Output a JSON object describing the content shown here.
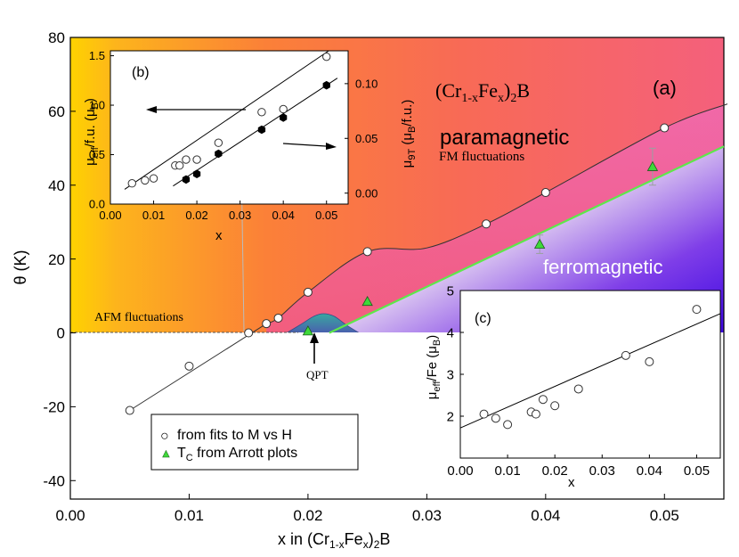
{
  "chart_data": [
    {
      "panel": "(a)",
      "type": "scatter",
      "title": "(Cr1-xFex)2B",
      "title_parts": {
        "base": "(Cr",
        "sub1": "1-x",
        "mid": "Fe",
        "sub2": "x",
        "end": ")",
        "sub3": "2",
        "tail": "B"
      },
      "xlabel": "x in (Cr1-xFex)2B",
      "xlabel_parts": {
        "base": "x in (Cr",
        "sub1": "1-x",
        "mid": "Fe",
        "sub2": "x",
        "end": ")",
        "sub3": "2",
        "tail": "B"
      },
      "ylabel": "θ (K)",
      "xlim": [
        0.0,
        0.055
      ],
      "ylim": [
        -45,
        80
      ],
      "xticks": [
        "0.00",
        "0.01",
        "0.02",
        "0.03",
        "0.04",
        "0.05"
      ],
      "xtick_values": [
        0.0,
        0.01,
        0.02,
        0.03,
        0.04,
        0.05
      ],
      "yticks": [
        "-40",
        "-20",
        "0",
        "20",
        "40",
        "60",
        "80"
      ],
      "ytick_values": [
        -40,
        -20,
        0,
        20,
        40,
        60,
        80
      ],
      "series": [
        {
          "name": "from fits to M vs H",
          "marker": "open-circle",
          "x": [
            0.005,
            0.01,
            0.015,
            0.0165,
            0.0175,
            0.02,
            0.025,
            0.035,
            0.04,
            0.05
          ],
          "y": [
            -21,
            -9,
            0,
            2.5,
            4,
            11,
            22,
            29.5,
            38,
            55.5
          ]
        },
        {
          "name": "TC from Arrott plots",
          "marker": "green-triangle",
          "x": [
            0.02,
            0.025,
            0.0395,
            0.049
          ],
          "y": [
            0.5,
            8.5,
            24,
            45
          ],
          "err": [
            0,
            0,
            2.5,
            5
          ]
        }
      ],
      "fit_line_low": {
        "x": [
          0.005,
          0.0165
        ],
        "y": [
          -21,
          2.5
        ]
      },
      "fit_curve_high": {
        "x": [
          0.0165,
          0.0175,
          0.02,
          0.025,
          0.03,
          0.035,
          0.04,
          0.05,
          0.0553
        ],
        "y": [
          2.5,
          4,
          11,
          22,
          23,
          29.5,
          38,
          55.5,
          62
        ]
      },
      "tc_line": {
        "x": [
          0.0218,
          0.055
        ],
        "y": [
          0,
          50.5
        ]
      },
      "qpt_dome": {
        "x": [
          0.0182,
          0.0195,
          0.0205,
          0.0213,
          0.0222,
          0.0232,
          0.0243
        ],
        "y": [
          0,
          2.5,
          4.5,
          5.2,
          4.5,
          2.2,
          0
        ]
      },
      "legend": {
        "placement": "bottom-left",
        "entries": [
          {
            "symbol": "○",
            "text": "from fits to M vs H"
          },
          {
            "symbol": "▲",
            "text": "TC from Arrott plots",
            "text_parts": {
              "base": "T",
              "sub": "C",
              "rest": " from Arrott plots"
            }
          }
        ]
      },
      "annotations": [
        "(a)",
        "paramagnetic",
        "FM fluctuations",
        "ferromagnetic",
        "AFM fluctuations",
        "QPT"
      ]
    },
    {
      "panel": "(b)",
      "type": "scatter",
      "xlabel": "x",
      "ylabel_left": "μeff/f.u. (μB)",
      "ylabel_left_parts": {
        "mu": "μ",
        "sub1": "eff",
        "mid": "/f.u. (μ",
        "sub2": "B",
        "end": ")"
      },
      "ylabel_right": "μ9T (μB/f.u.)",
      "ylabel_right_parts": {
        "mu": "μ",
        "sub1": "9T",
        "mid": " (μ",
        "sub2": "B",
        "end": "/f.u.)"
      },
      "xlim": [
        0.0,
        0.055
      ],
      "ylim_left": [
        0.0,
        1.55
      ],
      "ylim_right": [
        -0.01,
        0.13
      ],
      "xticks": [
        "0.00",
        "0.01",
        "0.02",
        "0.03",
        "0.04",
        "0.05"
      ],
      "xtick_values": [
        0.0,
        0.01,
        0.02,
        0.03,
        0.04,
        0.05
      ],
      "yticks_left": [
        "0.0",
        "0.5",
        "1.0",
        "1.5"
      ],
      "ytick_values_left": [
        0.0,
        0.5,
        1.0,
        1.5
      ],
      "yticks_right": [
        "0.00",
        "0.05",
        "0.10"
      ],
      "ytick_values_right": [
        0.0,
        0.05,
        0.1
      ],
      "series": [
        {
          "name": "μeff/f.u.",
          "axis": "left",
          "marker": "open-circle",
          "x": [
            0.005,
            0.008,
            0.01,
            0.015,
            0.016,
            0.0175,
            0.02,
            0.025,
            0.035,
            0.04,
            0.05
          ],
          "y": [
            0.21,
            0.24,
            0.26,
            0.39,
            0.39,
            0.45,
            0.45,
            0.62,
            0.93,
            0.96,
            1.49
          ]
        },
        {
          "name": "μ9T",
          "axis": "right",
          "marker": "filled-hexagon",
          "x": [
            0.0175,
            0.02,
            0.025,
            0.035,
            0.04,
            0.05
          ],
          "y": [
            0.0125,
            0.0175,
            0.036,
            0.058,
            0.069,
            0.0985
          ]
        }
      ],
      "fit_left": {
        "x": [
          0.0033,
          0.0505
        ],
        "y": [
          0.15,
          1.55
        ]
      },
      "fit_right": {
        "x": [
          0.0145,
          0.0525
        ],
        "y": [
          0.0065,
          0.105
        ]
      }
    },
    {
      "panel": "(c)",
      "type": "scatter",
      "xlabel": "x",
      "ylabel": "μeff/Fe (μB)",
      "ylabel_parts": {
        "mu": "μ",
        "sub1": "eff",
        "mid": "/Fe (μ",
        "sub2": "B",
        "end": ")"
      },
      "xlim": [
        0.0,
        0.055
      ],
      "ylim": [
        1.0,
        5.0
      ],
      "xticks": [
        "0.00",
        "0.01",
        "0.02",
        "0.03",
        "0.04",
        "0.05"
      ],
      "xtick_values": [
        0.0,
        0.01,
        0.02,
        0.03,
        0.04,
        0.05
      ],
      "yticks": [
        "2",
        "3",
        "4",
        "5"
      ],
      "ytick_values": [
        2,
        3,
        4,
        5
      ],
      "series": [
        {
          "name": "μeff/Fe",
          "marker": "open-circle",
          "x": [
            0.005,
            0.0075,
            0.01,
            0.015,
            0.016,
            0.0175,
            0.02,
            0.025,
            0.035,
            0.04,
            0.05
          ],
          "y": [
            2.05,
            1.95,
            1.8,
            2.1,
            2.05,
            2.4,
            2.25,
            2.65,
            3.45,
            3.3,
            4.55
          ]
        }
      ],
      "fit": {
        "x": [
          0.0,
          0.055
        ],
        "y": [
          1.72,
          4.45
        ]
      }
    }
  ]
}
